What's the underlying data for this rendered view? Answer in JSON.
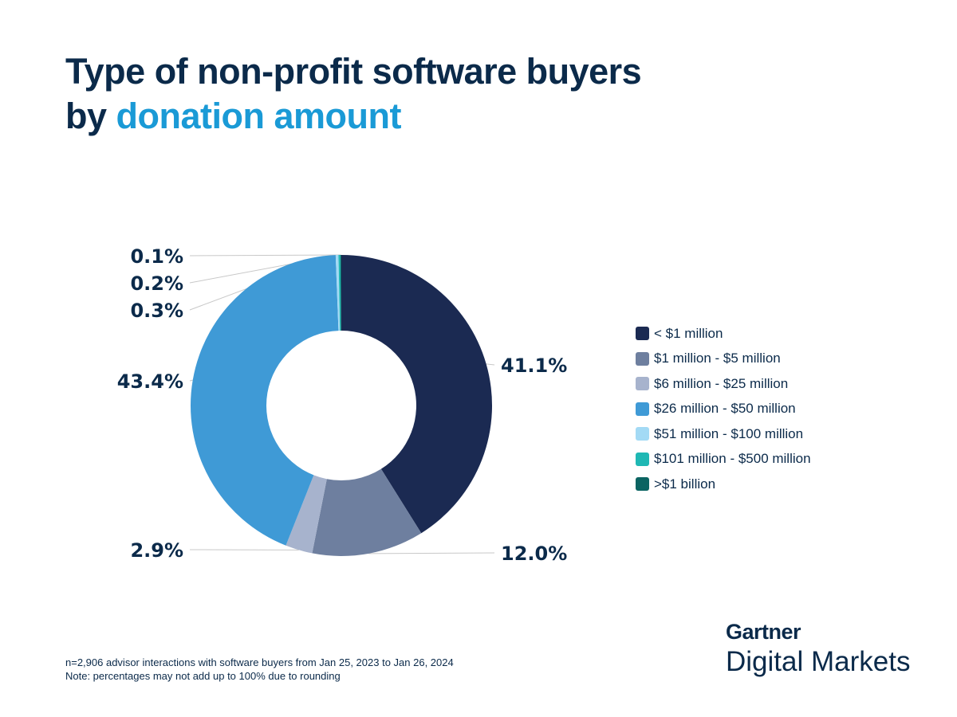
{
  "title": {
    "line1": "Type of non-profit software buyers",
    "line2_prefix": "by ",
    "line2_highlight": "donation amount"
  },
  "chart_data": {
    "type": "pie",
    "donut": true,
    "categories": [
      "< $1 million",
      "$1 million - $5 million",
      "$6 million - $25 million",
      "$26 million - $50 million",
      "$51 million - $100 million",
      "$101 million - $500 million",
      ">$1 billion"
    ],
    "values": [
      41.1,
      12.0,
      2.9,
      43.4,
      0.3,
      0.2,
      0.1
    ],
    "labels": [
      "41.1%",
      "12.0%",
      "2.9%",
      "43.4%",
      "0.3%",
      "0.2%",
      "0.1%"
    ],
    "colors": [
      "#1b2a52",
      "#6e7f9f",
      "#a7b3cd",
      "#3f9ad6",
      "#a3daf5",
      "#1fb8b4",
      "#0b6462"
    ],
    "legend_position": "right"
  },
  "footnote": {
    "line1": "n=2,906 advisor interactions with software buyers from Jan 25, 2023 to Jan 26, 2024",
    "line2": "Note: percentages may not add up to 100% due to rounding"
  },
  "logo": {
    "brand": "Gartner",
    "product": "Digital Markets"
  }
}
